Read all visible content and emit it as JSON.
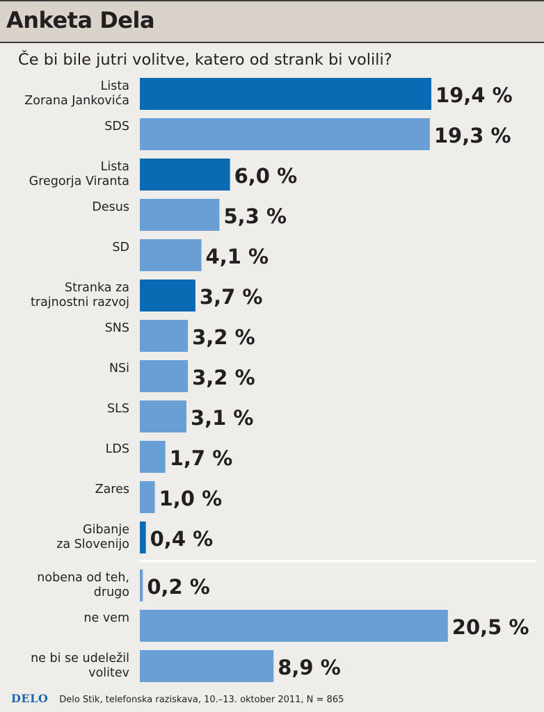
{
  "header": {
    "title": "Anketa Dela"
  },
  "question": "Če bi bile jutri volitve, katero od strank bi volili?",
  "colors": {
    "dark": "#0a6bb4",
    "light": "#6a9fd5",
    "header_bg": "#d9d3cc",
    "background": "#efedea"
  },
  "chart_data": {
    "type": "bar",
    "orientation": "horizontal",
    "title": "Če bi bile jutri volitve, katero od strank bi volili?",
    "unit": "%",
    "groups": [
      {
        "name": "parties",
        "bars": [
          {
            "label": [
              "Lista",
              "Zorana Jankovića"
            ],
            "value": 19.4,
            "display": "19,4 %",
            "highlight": true
          },
          {
            "label": [
              "SDS"
            ],
            "value": 19.3,
            "display": "19,3 %",
            "highlight": false
          },
          {
            "label": [
              "Lista",
              "Gregorja Viranta"
            ],
            "value": 6.0,
            "display": "6,0 %",
            "highlight": true
          },
          {
            "label": [
              "Desus"
            ],
            "value": 5.3,
            "display": "5,3 %",
            "highlight": false
          },
          {
            "label": [
              "SD"
            ],
            "value": 4.1,
            "display": "4,1 %",
            "highlight": false
          },
          {
            "label": [
              "Stranka za",
              "trajnostni razvoj"
            ],
            "value": 3.7,
            "display": "3,7 %",
            "highlight": true
          },
          {
            "label": [
              "SNS"
            ],
            "value": 3.2,
            "display": "3,2 %",
            "highlight": false
          },
          {
            "label": [
              "NSi"
            ],
            "value": 3.2,
            "display": "3,2 %",
            "highlight": false
          },
          {
            "label": [
              "SLS"
            ],
            "value": 3.1,
            "display": "3,1 %",
            "highlight": false
          },
          {
            "label": [
              "LDS"
            ],
            "value": 1.7,
            "display": "1,7 %",
            "highlight": false
          },
          {
            "label": [
              "Zares"
            ],
            "value": 1.0,
            "display": "1,0 %",
            "highlight": false
          },
          {
            "label": [
              "Gibanje",
              "za Slovenijo"
            ],
            "value": 0.4,
            "display": "0,4 %",
            "highlight": true
          }
        ]
      },
      {
        "name": "other",
        "bars": [
          {
            "label": [
              "nobena od teh,",
              "drugo"
            ],
            "value": 0.2,
            "display": "0,2 %",
            "highlight": false
          },
          {
            "label": [
              "ne vem"
            ],
            "value": 20.5,
            "display": "20,5 %",
            "highlight": false
          },
          {
            "label": [
              "ne bi se udeležil",
              "volitev"
            ],
            "value": 8.9,
            "display": "8,9 %",
            "highlight": false
          }
        ]
      }
    ]
  },
  "footer": {
    "logo": "DELO",
    "source": "Delo Stik, telefonska raziskava, 10.–13. oktober 2011, N = 865"
  }
}
